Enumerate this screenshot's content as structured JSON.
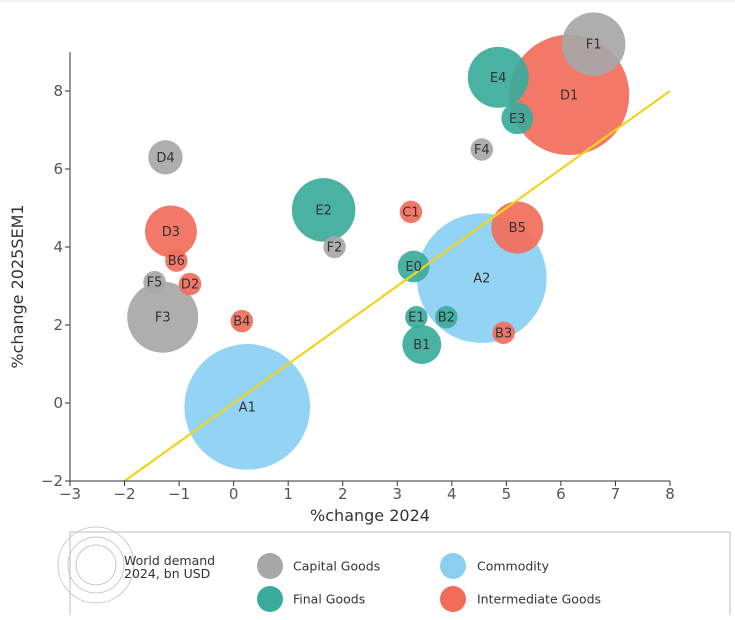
{
  "chart_data": {
    "type": "scatter",
    "xlabel": "%change 2024",
    "ylabel": "%change 2025SEM1",
    "xlim": [
      -3,
      8
    ],
    "ylim": [
      -2,
      9
    ],
    "xticks": [
      -3,
      -2,
      -1,
      0,
      1,
      2,
      3,
      4,
      5,
      6,
      7,
      8
    ],
    "yticks": [
      -2,
      0,
      2,
      4,
      6,
      8
    ],
    "grid": false,
    "reference_line": {
      "x": [
        -2,
        8
      ],
      "y": [
        -2,
        8
      ],
      "color": "#f2d41b"
    },
    "colors": {
      "Capital Goods": "#a7a7a7",
      "Final Goods": "#3aab9b",
      "Commodity": "#8acff2",
      "Intermediate Goods": "#f26c5a"
    },
    "series": [
      {
        "name": "Capital Goods",
        "points": [
          {
            "label": "F1",
            "x": 6.6,
            "y": 9.2,
            "size": 1.2
          },
          {
            "label": "D4",
            "x": -1.25,
            "y": 6.3,
            "size": 0.35
          },
          {
            "label": "F4",
            "x": 4.55,
            "y": 6.5,
            "size": 0.15
          },
          {
            "label": "F2",
            "x": 1.85,
            "y": 4.0,
            "size": 0.15
          },
          {
            "label": "F5",
            "x": -1.45,
            "y": 3.1,
            "size": 0.15
          },
          {
            "label": "F3",
            "x": -1.3,
            "y": 2.2,
            "size": 1.5
          }
        ]
      },
      {
        "name": "Final Goods",
        "points": [
          {
            "label": "E4",
            "x": 4.85,
            "y": 8.35,
            "size": 1.1
          },
          {
            "label": "E3",
            "x": 5.2,
            "y": 7.3,
            "size": 0.3
          },
          {
            "label": "E2",
            "x": 1.65,
            "y": 4.95,
            "size": 1.2
          },
          {
            "label": "E0",
            "x": 3.3,
            "y": 3.5,
            "size": 0.3
          },
          {
            "label": "E1",
            "x": 3.35,
            "y": 2.2,
            "size": 0.15
          },
          {
            "label": "B2",
            "x": 3.9,
            "y": 2.2,
            "size": 0.15
          },
          {
            "label": "B1",
            "x": 3.45,
            "y": 1.5,
            "size": 0.45
          }
        ]
      },
      {
        "name": "Commodity",
        "points": [
          {
            "label": "A2",
            "x": 4.55,
            "y": 3.2,
            "size": 5.0
          },
          {
            "label": "A1",
            "x": 0.25,
            "y": -0.1,
            "size": 4.7
          }
        ]
      },
      {
        "name": "Intermediate Goods",
        "points": [
          {
            "label": "D1",
            "x": 6.15,
            "y": 7.9,
            "size": 4.3
          },
          {
            "label": "C1",
            "x": 3.25,
            "y": 4.9,
            "size": 0.15
          },
          {
            "label": "B5",
            "x": 5.2,
            "y": 4.5,
            "size": 0.8
          },
          {
            "label": "D3",
            "x": -1.15,
            "y": 4.4,
            "size": 0.8
          },
          {
            "label": "B6",
            "x": -1.05,
            "y": 3.65,
            "size": 0.15
          },
          {
            "label": "D2",
            "x": -0.8,
            "y": 3.05,
            "size": 0.15
          },
          {
            "label": "B4",
            "x": 0.15,
            "y": 2.1,
            "size": 0.15
          },
          {
            "label": "B3",
            "x": 4.95,
            "y": 1.8,
            "size": 0.15
          }
        ]
      }
    ],
    "legend": {
      "placement": "bottom",
      "size_title": "World demand 2024, bn USD",
      "size_title_lines": [
        "World demand",
        "2024, bn USD"
      ],
      "entries": [
        "Capital Goods",
        "Commodity",
        "Final Goods",
        "Intermediate Goods"
      ]
    }
  }
}
